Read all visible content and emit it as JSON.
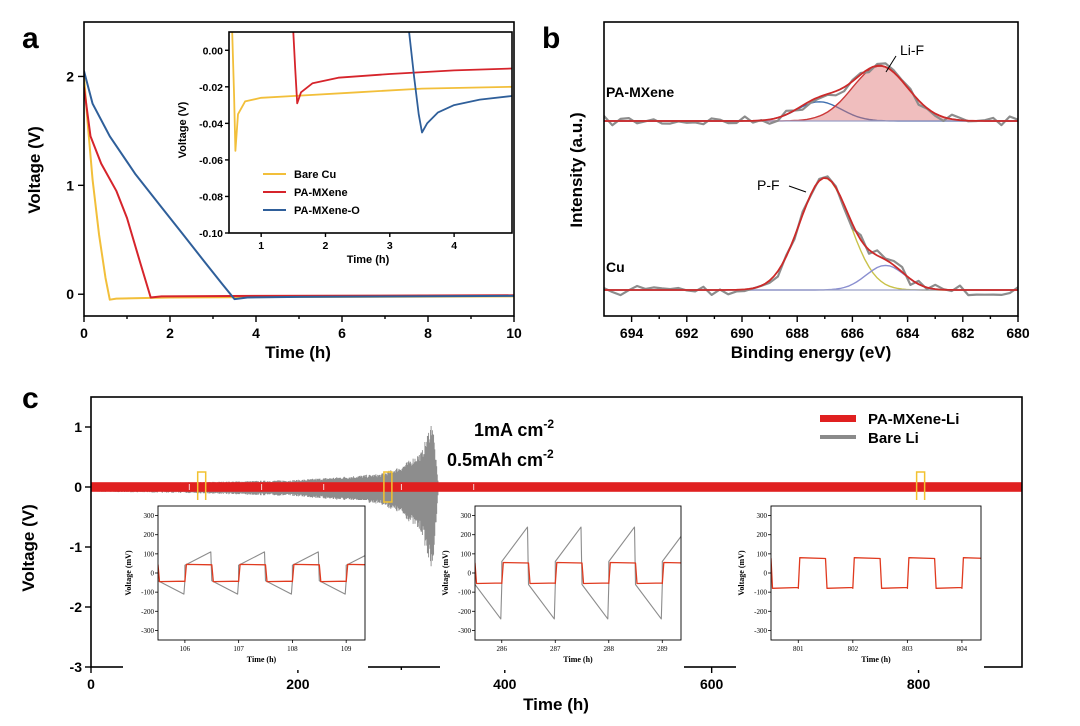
{
  "chart_data": [
    {
      "panel": "a",
      "type": "line",
      "xlabel": "Time (h)",
      "ylabel": "Voltage (V)",
      "xlim": [
        0,
        10
      ],
      "ylim": [
        -0.2,
        2.5
      ],
      "x_ticks": [
        "0",
        "2",
        "4",
        "6",
        "8",
        "10"
      ],
      "y_ticks": [
        "0",
        "1",
        "2"
      ],
      "colors": {
        "Bare Cu": "#f2bf3a",
        "PA-MXene": "#d6242b",
        "PA-MXene-O": "#2f5f9a"
      },
      "series": [
        {
          "name": "Bare Cu",
          "points": [
            [
              0,
              2.0
            ],
            [
              0.08,
              1.6
            ],
            [
              0.2,
              1.05
            ],
            [
              0.35,
              0.55
            ],
            [
              0.5,
              0.15
            ],
            [
              0.6,
              -0.05
            ],
            [
              0.75,
              -0.04
            ],
            [
              2,
              -0.03
            ],
            [
              5,
              -0.025
            ],
            [
              10,
              -0.02
            ]
          ]
        },
        {
          "name": "PA-MXene",
          "points": [
            [
              0,
              1.9
            ],
            [
              0.15,
              1.45
            ],
            [
              0.4,
              1.2
            ],
            [
              0.75,
              0.95
            ],
            [
              1.0,
              0.7
            ],
            [
              1.3,
              0.3
            ],
            [
              1.55,
              -0.03
            ],
            [
              1.8,
              -0.02
            ],
            [
              4,
              -0.015
            ],
            [
              10,
              -0.01
            ]
          ]
        },
        {
          "name": "PA-MXene-O",
          "points": [
            [
              0,
              2.05
            ],
            [
              0.2,
              1.75
            ],
            [
              0.6,
              1.45
            ],
            [
              1.2,
              1.1
            ],
            [
              1.8,
              0.8
            ],
            [
              2.3,
              0.55
            ],
            [
              2.8,
              0.3
            ],
            [
              3.2,
              0.1
            ],
            [
              3.5,
              -0.045
            ],
            [
              3.8,
              -0.03
            ],
            [
              5,
              -0.025
            ],
            [
              10,
              -0.015
            ]
          ]
        }
      ],
      "inset": {
        "xlabel": "Time (h)",
        "ylabel": "Voltage (V)",
        "xlim": [
          0.5,
          4.9
        ],
        "ylim": [
          -0.1,
          0.01
        ],
        "x_ticks": [
          "1",
          "2",
          "3",
          "4"
        ],
        "y_ticks": [
          "0.00",
          "-0.02",
          "-0.04",
          "-0.06",
          "-0.08",
          "-0.10"
        ],
        "legend": [
          "Bare Cu",
          "PA-MXene",
          "PA-MXene-O"
        ],
        "series": [
          {
            "name": "Bare Cu",
            "points": [
              [
                0.55,
                0.01
              ],
              [
                0.58,
                -0.025
              ],
              [
                0.6,
                -0.055
              ],
              [
                0.64,
                -0.035
              ],
              [
                0.75,
                -0.028
              ],
              [
                1.0,
                -0.026
              ],
              [
                1.5,
                -0.025
              ],
              [
                2.5,
                -0.023
              ],
              [
                3.5,
                -0.021
              ],
              [
                4.9,
                -0.02
              ]
            ]
          },
          {
            "name": "PA-MXene",
            "points": [
              [
                1.5,
                0.01
              ],
              [
                1.53,
                -0.01
              ],
              [
                1.56,
                -0.029
              ],
              [
                1.62,
                -0.023
              ],
              [
                1.8,
                -0.018
              ],
              [
                2.2,
                -0.015
              ],
              [
                3.0,
                -0.013
              ],
              [
                4.0,
                -0.011
              ],
              [
                4.9,
                -0.01
              ]
            ]
          },
          {
            "name": "PA-MXene-O",
            "points": [
              [
                3.3,
                0.01
              ],
              [
                3.38,
                -0.015
              ],
              [
                3.45,
                -0.035
              ],
              [
                3.5,
                -0.045
              ],
              [
                3.58,
                -0.04
              ],
              [
                3.75,
                -0.034
              ],
              [
                4.0,
                -0.03
              ],
              [
                4.4,
                -0.027
              ],
              [
                4.9,
                -0.025
              ]
            ]
          }
        ]
      }
    },
    {
      "panel": "b",
      "type": "line",
      "xlabel": "Binding energy (eV)",
      "ylabel": "Intensity (a.u.)",
      "xlim": [
        695,
        680
      ],
      "x_ticks": [
        "694",
        "692",
        "690",
        "688",
        "686",
        "684",
        "682",
        "680"
      ],
      "annotations": [
        "Li-F",
        "P-F"
      ],
      "spectra": [
        {
          "name": "PA-MXene",
          "peaks": [
            {
              "center": 687.2,
              "height": 0.35,
              "width": 0.8
            },
            {
              "center": 685.0,
              "height": 1.0,
              "width": 1.0
            }
          ]
        },
        {
          "name": "Cu",
          "peaks": [
            {
              "center": 687.0,
              "height": 1.0,
              "width": 0.9
            },
            {
              "center": 684.8,
              "height": 0.22,
              "width": 0.7
            }
          ]
        }
      ]
    },
    {
      "panel": "c",
      "type": "line",
      "xlabel": "Time (h)",
      "ylabel": "Voltage (V)",
      "xlim": [
        0,
        900
      ],
      "ylim": [
        -3,
        1.5
      ],
      "x_ticks": [
        "0",
        "200",
        "400",
        "600",
        "800"
      ],
      "y_ticks": [
        "1",
        "0",
        "-1",
        "-2",
        "-3"
      ],
      "legend": [
        "PA-MXene-Li",
        "Bare Li"
      ],
      "condition_1": "1mA cm",
      "condition_1_sup": "-2",
      "condition_2": "0.5mAh cm",
      "condition_2_sup": "-2",
      "envelope": {
        "PA-MXene-Li_amplitude_V": 0.08,
        "Bare_Li_amplitude_V": [
          [
            0,
            0.06
          ],
          [
            100,
            0.08
          ],
          [
            200,
            0.12
          ],
          [
            280,
            0.22
          ],
          [
            300,
            0.35
          ],
          [
            320,
            0.6
          ],
          [
            330,
            1.15
          ],
          [
            336,
            0.0
          ]
        ]
      },
      "insets": [
        {
          "xlabel": "Time (h)",
          "ylabel": "Voltage (mV)",
          "x_ticks": [
            "106",
            "107",
            "108",
            "109"
          ],
          "y_ticks": [
            "300",
            "200",
            "100",
            "0",
            "-100",
            "-200",
            "-300"
          ],
          "PA-MXene-Li_mV": 45,
          "Bare_Li_mV": [
            40,
            110
          ]
        },
        {
          "xlabel": "Time (h)",
          "ylabel": "Voltage (mV)",
          "x_ticks": [
            "286",
            "287",
            "288",
            "289"
          ],
          "y_ticks": [
            "300",
            "200",
            "100",
            "0",
            "-100",
            "-200",
            "-300"
          ],
          "PA-MXene-Li_mV": 55,
          "Bare_Li_mV": [
            60,
            240
          ]
        },
        {
          "xlabel": "Time (h)",
          "ylabel": "Voltage (mV)",
          "x_ticks": [
            "801",
            "802",
            "803",
            "804"
          ],
          "y_ticks": [
            "300",
            "200",
            "100",
            "0",
            "-100",
            "-200",
            "-300"
          ],
          "PA-MXene-Li_mV": 80
        }
      ]
    }
  ]
}
